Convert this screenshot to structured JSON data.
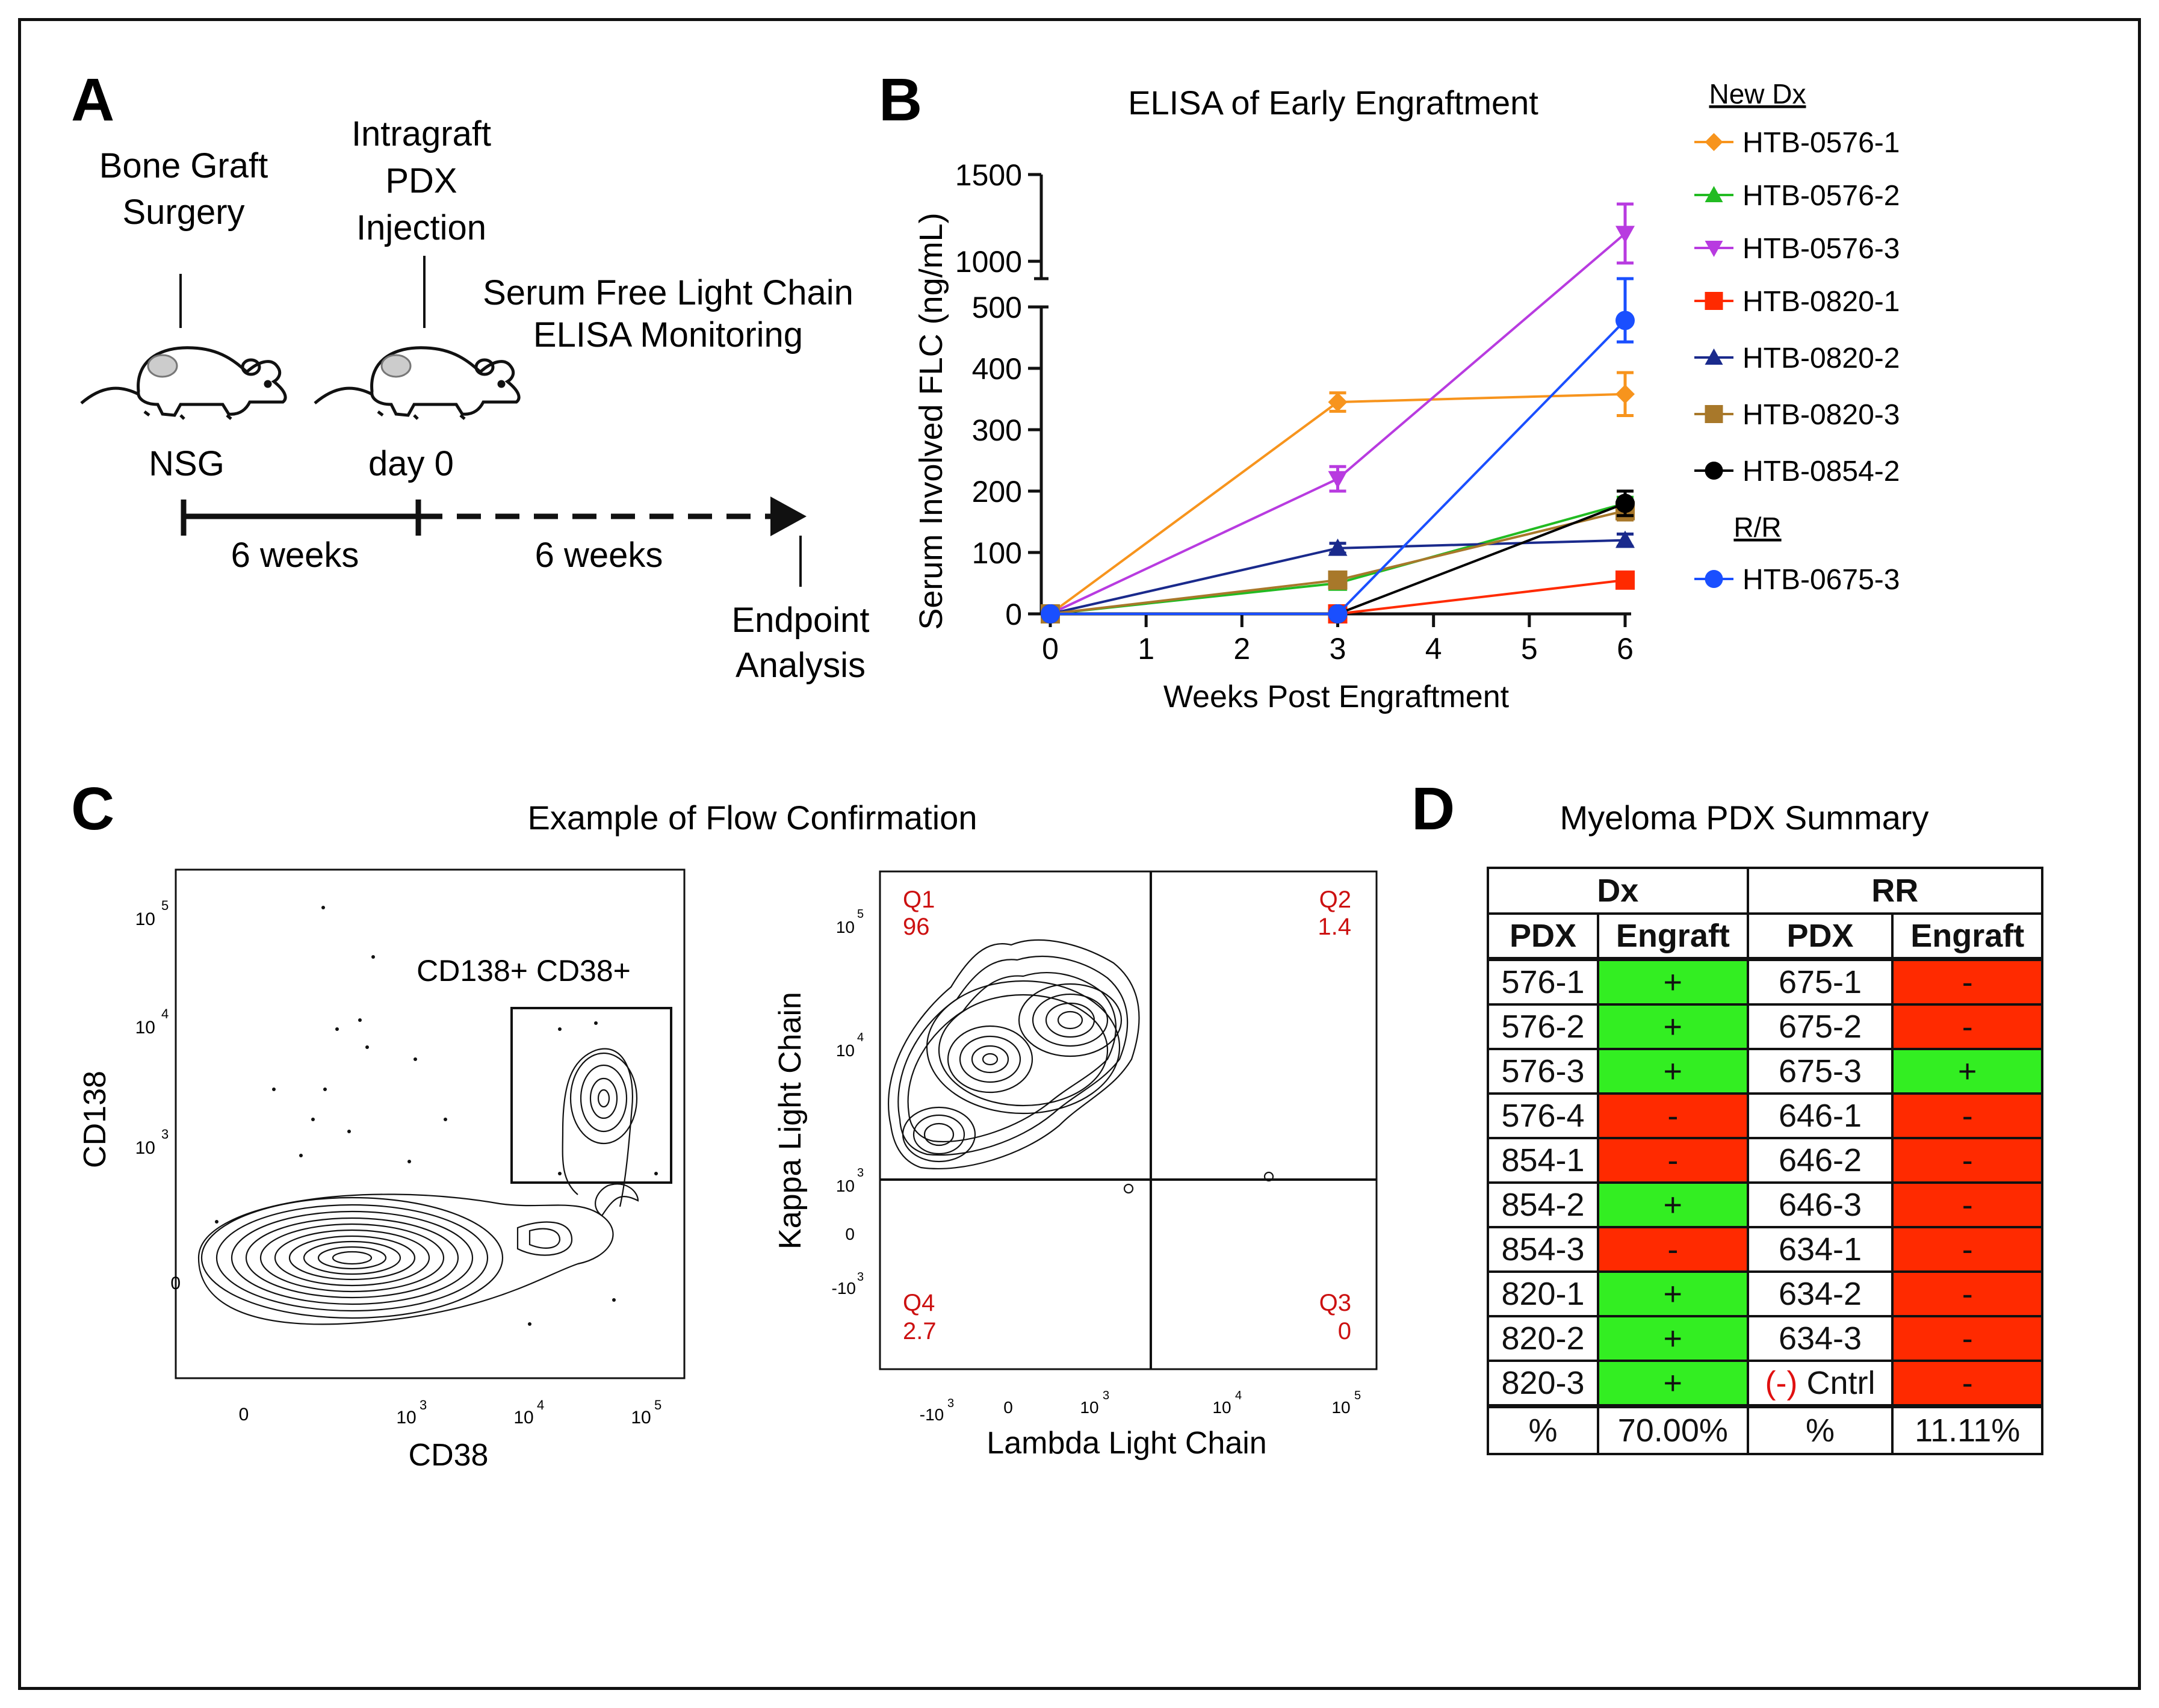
{
  "panel_labels": {
    "a": "A",
    "b": "B",
    "c": "C",
    "d": "D"
  },
  "panel_a": {
    "label_graft": [
      "Bone Graft",
      "Surgery"
    ],
    "label_inject": [
      "Intragraft",
      "PDX",
      "Injection"
    ],
    "label_elisa": [
      "Serum Free Light Chain",
      "ELISA Monitoring"
    ],
    "label_nsg": "NSG",
    "label_day0": "day 0",
    "period1": "6 weeks",
    "period2": "6 weeks",
    "label_endpoint": [
      "Endpoint",
      "Analysis"
    ]
  },
  "chart_data": {
    "type": "line",
    "title": "ELISA of Early Engraftment",
    "xlabel": "Weeks Post Engraftment",
    "ylabel": "Serum Involved FLC (ng/mL)",
    "x": [
      0,
      3,
      6
    ],
    "x_ticks": [
      "0",
      "1",
      "2",
      "3",
      "4",
      "5",
      "6"
    ],
    "y_ticks_lower": [
      "0",
      "100",
      "200",
      "300",
      "400",
      "500"
    ],
    "y_ticks_upper": [
      "1000",
      "1500"
    ],
    "ylim_lower": [
      0,
      500
    ],
    "ylim_upper": [
      900,
      1500
    ],
    "axis_break": true,
    "legend_group1": "New Dx",
    "legend_group2": "R/R",
    "series": [
      {
        "name": "HTB-0576-1",
        "group": "New Dx",
        "color": "#f7941d",
        "marker": "diamond",
        "values": [
          0,
          345,
          358
        ],
        "errors": [
          0,
          15,
          35
        ]
      },
      {
        "name": "HTB-0576-2",
        "group": "New Dx",
        "color": "#22bb22",
        "marker": "triangle-up",
        "values": [
          0,
          50,
          180
        ],
        "errors": [
          0,
          5,
          10
        ]
      },
      {
        "name": "HTB-0576-3",
        "group": "New Dx",
        "color": "#b83be0",
        "marker": "triangle-down",
        "values": [
          0,
          220,
          1160
        ],
        "errors": [
          0,
          20,
          170
        ]
      },
      {
        "name": "HTB-0820-1",
        "group": "New Dx",
        "color": "#ff2a00",
        "marker": "square",
        "values": [
          0,
          0,
          55
        ],
        "errors": [
          0,
          0,
          5
        ]
      },
      {
        "name": "HTB-0820-2",
        "group": "New Dx",
        "color": "#1a2a8c",
        "marker": "triangle-up",
        "values": [
          0,
          107,
          120
        ],
        "errors": [
          0,
          8,
          10
        ]
      },
      {
        "name": "HTB-0820-3",
        "group": "New Dx",
        "color": "#a8782a",
        "marker": "square",
        "values": [
          0,
          55,
          168
        ],
        "errors": [
          0,
          8,
          15
        ]
      },
      {
        "name": "HTB-0854-2",
        "group": "New Dx",
        "color": "#000000",
        "marker": "circle",
        "values": [
          0,
          0,
          180
        ],
        "errors": [
          0,
          0,
          20
        ]
      },
      {
        "name": "HTB-0675-3",
        "group": "R/R",
        "color": "#1a4fff",
        "marker": "circle",
        "values": [
          0,
          0,
          478
        ],
        "errors": [
          0,
          0,
          35
        ]
      }
    ]
  },
  "panel_c": {
    "title": "Example of Flow Confirmation",
    "plot1": {
      "xlabel": "CD38",
      "ylabel": "CD138",
      "gate_label": "CD138+ CD38+",
      "x_ticks": [
        {
          "base": "0",
          "exp": ""
        },
        {
          "base": "10",
          "exp": "3"
        },
        {
          "base": "10",
          "exp": "4"
        },
        {
          "base": "10",
          "exp": "5"
        }
      ],
      "y_ticks": [
        {
          "base": "0",
          "exp": ""
        },
        {
          "base": "10",
          "exp": "3"
        },
        {
          "base": "10",
          "exp": "4"
        },
        {
          "base": "10",
          "exp": "5"
        }
      ]
    },
    "plot2": {
      "xlabel": "Lambda Light Chain",
      "ylabel": "Kappa Light Chain",
      "x_ticks": [
        {
          "base": "-10",
          "exp": "3"
        },
        {
          "base": "0",
          "exp": ""
        },
        {
          "base": "10",
          "exp": "3"
        },
        {
          "base": "10",
          "exp": "4"
        },
        {
          "base": "10",
          "exp": "5"
        }
      ],
      "y_ticks": [
        {
          "base": "-10",
          "exp": "3"
        },
        {
          "base": "0",
          "exp": ""
        },
        {
          "base": "10",
          "exp": "3"
        },
        {
          "base": "10",
          "exp": "4"
        },
        {
          "base": "10",
          "exp": "5"
        }
      ],
      "quadrants": [
        {
          "name": "Q1",
          "value": "96"
        },
        {
          "name": "Q2",
          "value": "1.4"
        },
        {
          "name": "Q4",
          "value": "2.7"
        },
        {
          "name": "Q3",
          "value": "0"
        }
      ]
    }
  },
  "panel_d": {
    "title": "Myeloma PDX Summary",
    "groups": [
      "Dx",
      "RR"
    ],
    "headers": [
      "PDX",
      "Engraft",
      "PDX",
      "Engraft"
    ],
    "rows": [
      {
        "dx_pdx": "576-1",
        "dx_eng": "+",
        "rr_pdx": "675-1",
        "rr_eng": "-"
      },
      {
        "dx_pdx": "576-2",
        "dx_eng": "+",
        "rr_pdx": "675-2",
        "rr_eng": "-"
      },
      {
        "dx_pdx": "576-3",
        "dx_eng": "+",
        "rr_pdx": "675-3",
        "rr_eng": "+"
      },
      {
        "dx_pdx": "576-4",
        "dx_eng": "-",
        "rr_pdx": "646-1",
        "rr_eng": "-"
      },
      {
        "dx_pdx": "854-1",
        "dx_eng": "-",
        "rr_pdx": "646-2",
        "rr_eng": "-"
      },
      {
        "dx_pdx": "854-2",
        "dx_eng": "+",
        "rr_pdx": "646-3",
        "rr_eng": "-"
      },
      {
        "dx_pdx": "854-3",
        "dx_eng": "-",
        "rr_pdx": "634-1",
        "rr_eng": "-"
      },
      {
        "dx_pdx": "820-1",
        "dx_eng": "+",
        "rr_pdx": "634-2",
        "rr_eng": "-"
      },
      {
        "dx_pdx": "820-2",
        "dx_eng": "+",
        "rr_pdx": "634-3",
        "rr_eng": "-"
      },
      {
        "dx_pdx": "820-3",
        "dx_eng": "+",
        "rr_pdx": "Cntrl",
        "rr_pdx_prefix": "(-)",
        "rr_eng": "-"
      }
    ],
    "summary": {
      "dx_label": "%",
      "dx_value": "70.00%",
      "rr_label": "%",
      "rr_value": "11.11%"
    },
    "colors": {
      "positive": "#33ee22",
      "negative": "#ff2a00"
    }
  }
}
